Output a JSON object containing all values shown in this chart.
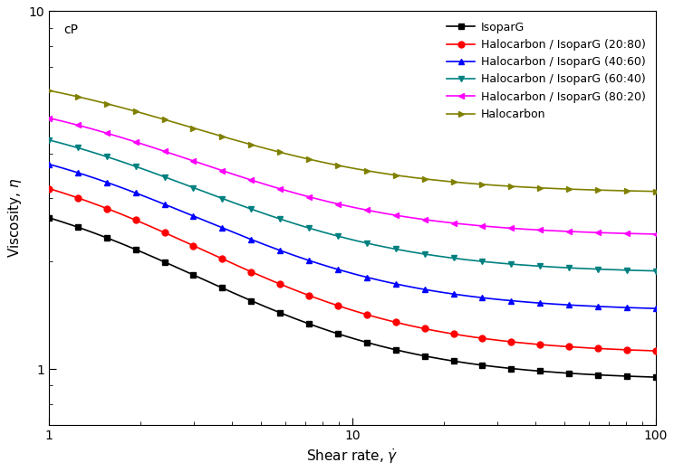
{
  "series": [
    {
      "label": "IsoparG",
      "color": "#000000",
      "marker": "s",
      "plateau": 0.93,
      "high_val": 3.5,
      "decay_rate": 1.8
    },
    {
      "label": "Halocarbon / IsoparG (20:80)",
      "color": "#ff0000",
      "marker": "o",
      "plateau": 1.1,
      "high_val": 4.2,
      "decay_rate": 1.85
    },
    {
      "label": "Halocarbon / IsoparG (40:60)",
      "color": "#0000ff",
      "marker": "^",
      "plateau": 1.45,
      "high_val": 4.8,
      "decay_rate": 1.9
    },
    {
      "label": "Halocarbon / IsoparG (60:40)",
      "color": "#008080",
      "marker": "v",
      "plateau": 1.85,
      "high_val": 5.5,
      "decay_rate": 1.95
    },
    {
      "label": "Halocarbon / IsoparG (80:20)",
      "color": "#ff00ff",
      "marker": "<",
      "plateau": 2.35,
      "high_val": 6.2,
      "decay_rate": 2.0
    },
    {
      "label": "Halocarbon",
      "color": "#808000",
      "marker": ">",
      "plateau": 3.1,
      "high_val": 7.2,
      "decay_rate": 2.1
    }
  ],
  "xlim": [
    1,
    100
  ],
  "ylim": [
    0.7,
    10
  ],
  "xlabel": "Shear rate, $\\dot{\\gamma}$",
  "ylabel": "Viscosity, $\\eta$",
  "ylabel_extra": "cP",
  "figsize": [
    7.44,
    5.22
  ],
  "dpi": 100,
  "marker_size": 5,
  "linewidth": 1.2,
  "legend_fontsize": 9,
  "axis_fontsize": 11
}
